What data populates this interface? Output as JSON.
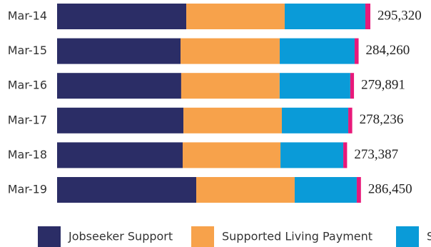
{
  "chart_data": {
    "type": "stacked-bar-horizontal",
    "categories": [
      "Mar-14",
      "Mar-15",
      "Mar-16",
      "Mar-17",
      "Mar-18",
      "Mar-19"
    ],
    "series": [
      {
        "name": "Jobseeker Support",
        "color": "#2b2d66",
        "values": [
          121800,
          116400,
          117000,
          119100,
          118400,
          131200
        ]
      },
      {
        "name": "Supported Living Payment",
        "color": "#f7a24b",
        "values": [
          92800,
          93500,
          92800,
          92800,
          92200,
          92800
        ]
      },
      {
        "name": "Sole Parent Support",
        "color": "#0a9bd8",
        "values": [
          76000,
          70600,
          66600,
          62600,
          59200,
          58500
        ]
      },
      {
        "color": "#e8197a",
        "values": [
          4720,
          3760,
          3491,
          3736,
          3587,
          3950
        ]
      }
    ],
    "totals": [
      295320,
      284260,
      279891,
      278236,
      273387,
      286450
    ],
    "total_labels": [
      "295,320",
      "284,260",
      "279,891",
      "278,236",
      "273,387",
      "286,450"
    ]
  }
}
